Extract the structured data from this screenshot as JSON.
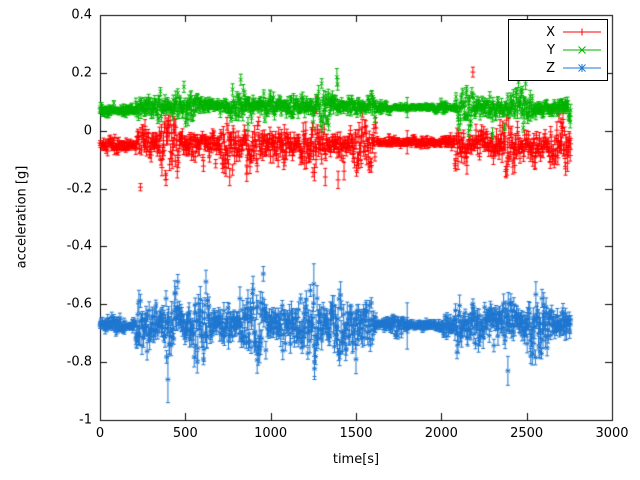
{
  "figure": {
    "background": "#ffffff",
    "border_color": "#000000",
    "text_color": "#000000"
  },
  "chart_data": {
    "type": "scatter",
    "style": "points-with-error-bars",
    "title": "",
    "xlabel": "time[s]",
    "ylabel": "acceleration [g]",
    "xlim": [
      0,
      3000
    ],
    "ylim": [
      -1,
      0.4
    ],
    "grid": false,
    "sample_dt": 3,
    "time_range": [
      0,
      2760
    ],
    "x_ticks": [
      {
        "value": 0,
        "label": "0"
      },
      {
        "value": 500,
        "label": "500"
      },
      {
        "value": 1000,
        "label": "1000"
      },
      {
        "value": 1500,
        "label": "1500"
      },
      {
        "value": 2000,
        "label": "2000"
      },
      {
        "value": 2500,
        "label": "2500"
      },
      {
        "value": 3000,
        "label": "3000"
      }
    ],
    "y_ticks": [
      {
        "value": 0.4,
        "label": "0.4"
      },
      {
        "value": 0.2,
        "label": "0.2"
      },
      {
        "value": 0,
        "label": "0"
      },
      {
        "value": -0.2,
        "label": "-0.2"
      },
      {
        "value": -0.4,
        "label": "-0.4"
      },
      {
        "value": -0.6,
        "label": "-0.6"
      },
      {
        "value": -0.8,
        "label": "-0.8"
      },
      {
        "value": -1,
        "label": "-1"
      }
    ],
    "legend": {
      "position": "top-right",
      "entries": [
        "X",
        "Y",
        "Z"
      ]
    },
    "series": [
      {
        "name": "X",
        "color": "#ff0000",
        "marker": "plus",
        "baseline": -0.05,
        "segments": [
          {
            "t0": 0,
            "t1": 210,
            "mean": -0.05,
            "spread": 0.008,
            "err": 0.012
          },
          {
            "t0": 210,
            "t1": 1620,
            "mean": -0.05,
            "spread": 0.032,
            "err": 0.02
          },
          {
            "t0": 1620,
            "t1": 2080,
            "mean": -0.04,
            "spread": 0.007,
            "err": 0.01
          },
          {
            "t0": 2080,
            "t1": 2760,
            "mean": -0.05,
            "spread": 0.032,
            "err": 0.02
          }
        ],
        "spikes": [
          {
            "t": 760,
            "v": -0.16,
            "e": 0.03
          },
          {
            "t": 860,
            "v": -0.15,
            "e": 0.025
          },
          {
            "t": 1268,
            "v": 0.09,
            "e": 0.03
          },
          {
            "t": 1320,
            "v": -0.16,
            "e": 0.03
          },
          {
            "t": 1395,
            "v": -0.17,
            "e": 0.03
          },
          {
            "t": 1430,
            "v": -0.14,
            "e": 0.03
          },
          {
            "t": 1800,
            "v": -0.04,
            "e": 0.04
          },
          {
            "t": 2150,
            "v": -0.12,
            "e": 0.03
          },
          {
            "t": 2430,
            "v": -0.12,
            "e": 0.025
          },
          {
            "t": 2550,
            "v": -0.11,
            "e": 0.02
          }
        ]
      },
      {
        "name": "Y",
        "color": "#00b300",
        "marker": "cross",
        "baseline": 0.08,
        "segments": [
          {
            "t0": 0,
            "t1": 210,
            "mean": 0.07,
            "spread": 0.006,
            "err": 0.01
          },
          {
            "t0": 210,
            "t1": 1620,
            "mean": 0.085,
            "spread": 0.018,
            "err": 0.015
          },
          {
            "t0": 1620,
            "t1": 2080,
            "mean": 0.08,
            "spread": 0.006,
            "err": 0.008
          },
          {
            "t0": 2080,
            "t1": 2760,
            "mean": 0.08,
            "spread": 0.022,
            "err": 0.015
          }
        ],
        "spikes": [
          {
            "t": 1250,
            "v": 0.03,
            "e": 0.02
          },
          {
            "t": 1340,
            "v": 0.02,
            "e": 0.02
          },
          {
            "t": 1388,
            "v": 0.185,
            "e": 0.03
          },
          {
            "t": 1393,
            "v": 0.16,
            "e": 0.02
          },
          {
            "t": 1800,
            "v": 0.08,
            "e": 0.035
          },
          {
            "t": 2160,
            "v": 0.0,
            "e": 0.02
          },
          {
            "t": 2300,
            "v": -0.01,
            "e": 0.02
          },
          {
            "t": 2480,
            "v": 0.01,
            "e": 0.015
          }
        ]
      },
      {
        "name": "Z",
        "color": "#1f77d0",
        "marker": "star",
        "baseline": -0.67,
        "segments": [
          {
            "t0": 0,
            "t1": 210,
            "mean": -0.672,
            "spread": 0.008,
            "err": 0.012
          },
          {
            "t0": 210,
            "t1": 1620,
            "mean": -0.67,
            "spread": 0.04,
            "err": 0.03
          },
          {
            "t0": 1620,
            "t1": 2080,
            "mean": -0.672,
            "spread": 0.01,
            "err": 0.012
          },
          {
            "t0": 2080,
            "t1": 2760,
            "mean": -0.665,
            "spread": 0.035,
            "err": 0.028
          }
        ],
        "spikes": [
          {
            "t": 398,
            "v": -0.86,
            "e": 0.08
          },
          {
            "t": 820,
            "v": -0.58,
            "e": 0.04
          },
          {
            "t": 1253,
            "v": -0.53,
            "e": 0.07
          },
          {
            "t": 1257,
            "v": -0.8,
            "e": 0.06
          },
          {
            "t": 1500,
            "v": -0.79,
            "e": 0.05
          },
          {
            "t": 1800,
            "v": -0.675,
            "e": 0.08
          },
          {
            "t": 2390,
            "v": -0.83,
            "e": 0.05
          },
          {
            "t": 2600,
            "v": -0.6,
            "e": 0.04
          }
        ]
      }
    ]
  }
}
